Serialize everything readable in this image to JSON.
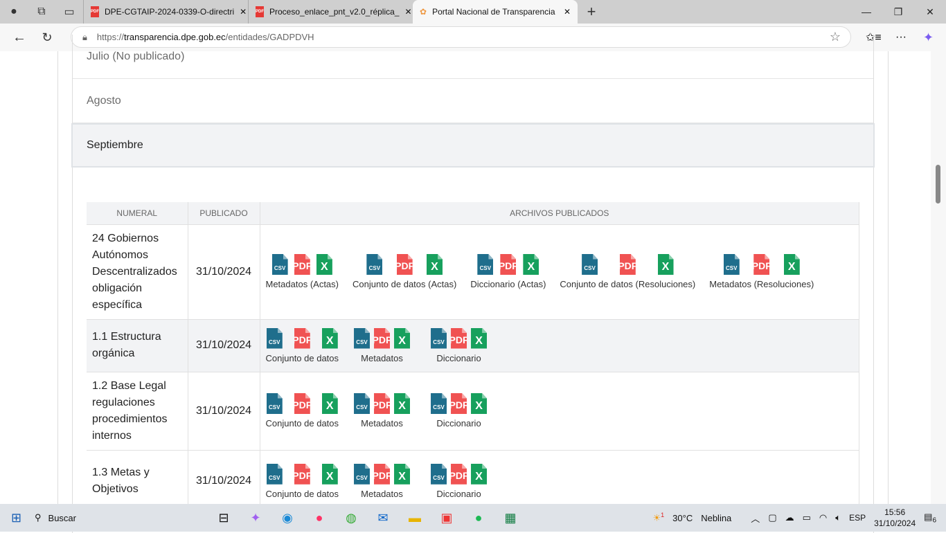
{
  "browser": {
    "tabs": [
      {
        "title": "DPE-CGTAIP-2024-0339-O-directri",
        "icon": "pdf-icon"
      },
      {
        "title": "Proceso_enlace_pnt_v2.0_réplica_",
        "icon": "pdf-icon"
      },
      {
        "title": "Portal Nacional de Transparencia",
        "icon": "portal-logo-icon",
        "active": true
      }
    ],
    "url_prefix": "https://",
    "url_host": "transparencia.dpe.gob.ec",
    "url_path": "/entidades/GADPDVH"
  },
  "months": [
    "Julio (No publicado)",
    "Agosto",
    "Septiembre"
  ],
  "table": {
    "headers": [
      "NUMERAL",
      "PUBLICADO",
      "ARCHIVOS PUBLICADOS"
    ],
    "rows": [
      {
        "numeral": "24 Gobiernos Autónomos Descentralizados obligación específica",
        "date": "31/10/2024",
        "files": [
          "Metadatos (Actas)",
          "Conjunto de datos (Actas)",
          "Diccionario (Actas)",
          "Conjunto de datos (Resoluciones)",
          "Metadatos (Resoluciones)"
        ]
      },
      {
        "numeral": "1.1 Estructura orgánica",
        "date": "31/10/2024",
        "files": [
          "Conjunto de datos",
          "Metadatos",
          "Diccionario"
        ]
      },
      {
        "numeral": "1.2 Base Legal regulaciones procedimientos internos",
        "date": "31/10/2024",
        "files": [
          "Conjunto de datos",
          "Metadatos",
          "Diccionario"
        ]
      },
      {
        "numeral": "1.3 Metas y Objetivos",
        "date": "31/10/2024",
        "files": [
          "Conjunto de datos",
          "Metadatos",
          "Diccionario"
        ]
      }
    ],
    "file_types": [
      {
        "label": "CSV",
        "color": "#1f6e8c"
      },
      {
        "label": "PDF",
        "color": "#f05252"
      },
      {
        "label": "X",
        "color": "#17a05d"
      }
    ]
  },
  "taskbar": {
    "search": "Buscar",
    "weather": "30°C",
    "weather_desc": "Neblina",
    "weather_badge": "1",
    "lang": "ESP",
    "time": "15:56",
    "date": "31/10/2024",
    "notifications": "6"
  }
}
